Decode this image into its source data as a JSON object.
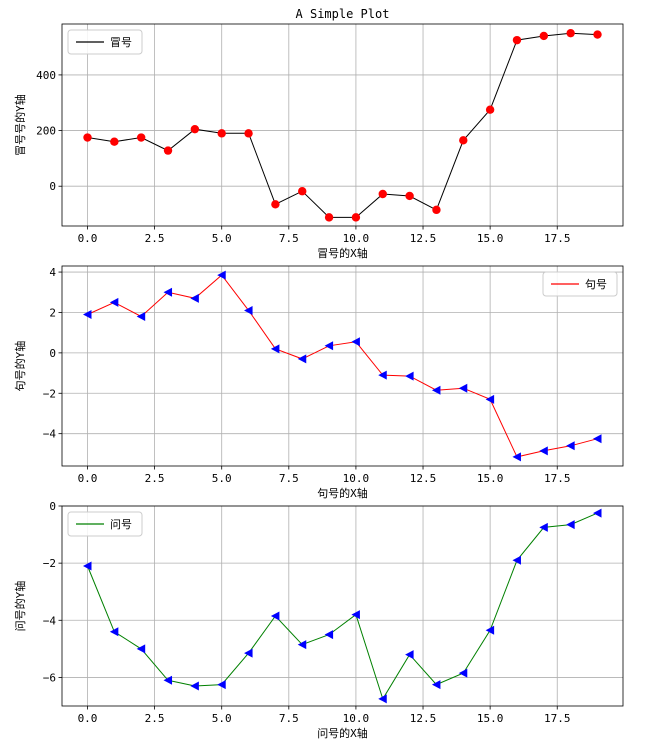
{
  "chart_data": [
    {
      "type": "line",
      "title": "A Simple Plot",
      "xlabel": "冒号的X轴",
      "ylabel": "冒号号的Y轴",
      "xlim": [
        -0.95,
        19.95
      ],
      "ylim": [
        -143,
        583
      ],
      "xticks": [
        0.0,
        2.5,
        5.0,
        7.5,
        10.0,
        12.5,
        15.0,
        17.5
      ],
      "xtick_labels": [
        "0.0",
        "2.5",
        "5.0",
        "7.5",
        "10.0",
        "12.5",
        "15.0",
        "17.5"
      ],
      "yticks": [
        0,
        200,
        400
      ],
      "ytick_labels": [
        "0",
        "200",
        "400"
      ],
      "grid": true,
      "legend_position": "upper-left",
      "line_color": "#000000",
      "marker": "circle",
      "marker_color": "#ff0000",
      "series": [
        {
          "name": "冒号",
          "x": [
            0,
            1,
            2,
            3,
            4,
            5,
            6,
            7,
            8,
            9,
            10,
            11,
            12,
            13,
            14,
            15,
            16,
            17,
            18,
            19
          ],
          "values": [
            175,
            160,
            175,
            128,
            205,
            190,
            190,
            -65,
            -18,
            -112,
            -112,
            -28,
            -35,
            -85,
            165,
            275,
            525,
            540,
            550,
            545
          ]
        }
      ]
    },
    {
      "type": "line",
      "title": "",
      "xlabel": "句号的X轴",
      "ylabel": "句号的Y轴",
      "xlim": [
        -0.95,
        19.95
      ],
      "ylim": [
        -5.6,
        4.3
      ],
      "xticks": [
        0.0,
        2.5,
        5.0,
        7.5,
        10.0,
        12.5,
        15.0,
        17.5
      ],
      "xtick_labels": [
        "0.0",
        "2.5",
        "5.0",
        "7.5",
        "10.0",
        "12.5",
        "15.0",
        "17.5"
      ],
      "yticks": [
        -4,
        -2,
        0,
        2,
        4
      ],
      "ytick_labels": [
        "−4",
        "−2",
        "0",
        "2",
        "4"
      ],
      "grid": true,
      "legend_position": "upper-right",
      "line_color": "#ff0000",
      "marker": "triangle-left",
      "marker_color": "#0000ff",
      "series": [
        {
          "name": "句号",
          "x": [
            0,
            1,
            2,
            3,
            4,
            5,
            6,
            7,
            8,
            9,
            10,
            11,
            12,
            13,
            14,
            15,
            16,
            17,
            18,
            19
          ],
          "values": [
            1.9,
            2.5,
            1.8,
            3.0,
            2.7,
            3.85,
            2.1,
            0.2,
            -0.3,
            0.35,
            0.55,
            -1.1,
            -1.15,
            -1.85,
            -1.75,
            -2.3,
            -5.15,
            -4.85,
            -4.6,
            -4.25
          ]
        }
      ]
    },
    {
      "type": "line",
      "title": "",
      "xlabel": "问号的X轴",
      "ylabel": "问号的Y轴",
      "xlim": [
        -0.95,
        19.95
      ],
      "ylim": [
        -7.0,
        0.0
      ],
      "xticks": [
        0.0,
        2.5,
        5.0,
        7.5,
        10.0,
        12.5,
        15.0,
        17.5
      ],
      "xtick_labels": [
        "0.0",
        "2.5",
        "5.0",
        "7.5",
        "10.0",
        "12.5",
        "15.0",
        "17.5"
      ],
      "yticks": [
        -6,
        -4,
        -2,
        0
      ],
      "ytick_labels": [
        "−6",
        "−4",
        "−2",
        "0"
      ],
      "grid": true,
      "legend_position": "upper-left",
      "line_color": "#008000",
      "marker": "triangle-left",
      "marker_color": "#0000ff",
      "series": [
        {
          "name": "问号",
          "x": [
            0,
            1,
            2,
            3,
            4,
            5,
            6,
            7,
            8,
            9,
            10,
            11,
            12,
            13,
            14,
            15,
            16,
            17,
            18,
            19
          ],
          "values": [
            -2.1,
            -4.4,
            -5.0,
            -6.1,
            -6.3,
            -6.25,
            -5.15,
            -3.85,
            -4.85,
            -4.5,
            -3.8,
            -6.75,
            -5.2,
            -6.25,
            -5.85,
            -4.35,
            -1.9,
            -0.75,
            -0.65,
            -0.25
          ]
        }
      ]
    }
  ]
}
